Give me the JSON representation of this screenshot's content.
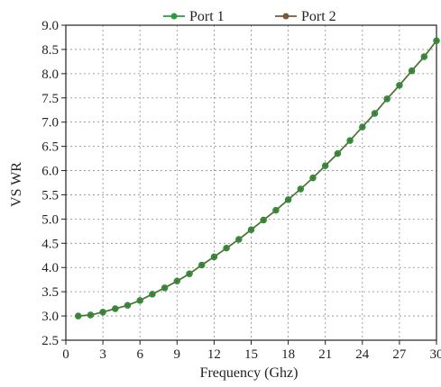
{
  "chart_data": {
    "type": "line",
    "title": "",
    "xlabel": "Frequency (Ghz)",
    "ylabel": "VS WR",
    "xlim": [
      0,
      30
    ],
    "ylim": [
      2.5,
      9.0
    ],
    "xticks": [
      0,
      3,
      6,
      9,
      12,
      15,
      18,
      21,
      24,
      27,
      30
    ],
    "yticks": [
      2.5,
      3.0,
      3.5,
      4.0,
      4.5,
      5.0,
      5.5,
      6.0,
      6.5,
      7.0,
      7.5,
      8.0,
      8.5,
      9.0
    ],
    "grid": true,
    "legend_position": "top",
    "series": [
      {
        "name": "Port 1",
        "color": "#22a03a",
        "marker": "circle",
        "x": [
          1,
          2,
          3,
          4,
          5,
          6,
          7,
          8,
          9,
          10,
          11,
          12,
          13,
          14,
          15,
          16,
          17,
          18,
          19,
          20,
          21,
          22,
          23,
          24,
          25,
          26,
          27,
          28,
          29,
          30
        ],
        "y": [
          3.0,
          3.02,
          3.08,
          3.15,
          3.22,
          3.32,
          3.45,
          3.58,
          3.72,
          3.87,
          4.05,
          4.22,
          4.4,
          4.58,
          4.78,
          4.98,
          5.18,
          5.4,
          5.62,
          5.85,
          6.1,
          6.35,
          6.62,
          6.9,
          7.18,
          7.48,
          7.76,
          8.06,
          8.35,
          8.68
        ]
      },
      {
        "name": "Port 2",
        "color": "#7a5a3a",
        "marker": "circle",
        "x": [
          1,
          2,
          3,
          4,
          5,
          6,
          7,
          8,
          9,
          10,
          11,
          12,
          13,
          14,
          15,
          16,
          17,
          18,
          19,
          20,
          21,
          22,
          23,
          24,
          25,
          26,
          27,
          28,
          29,
          30
        ],
        "y": [
          3.0,
          3.02,
          3.08,
          3.15,
          3.22,
          3.32,
          3.45,
          3.58,
          3.72,
          3.87,
          4.05,
          4.22,
          4.4,
          4.58,
          4.78,
          4.98,
          5.18,
          5.4,
          5.62,
          5.85,
          6.1,
          6.35,
          6.62,
          6.9,
          7.18,
          7.48,
          7.76,
          8.06,
          8.35,
          8.68
        ]
      }
    ]
  }
}
